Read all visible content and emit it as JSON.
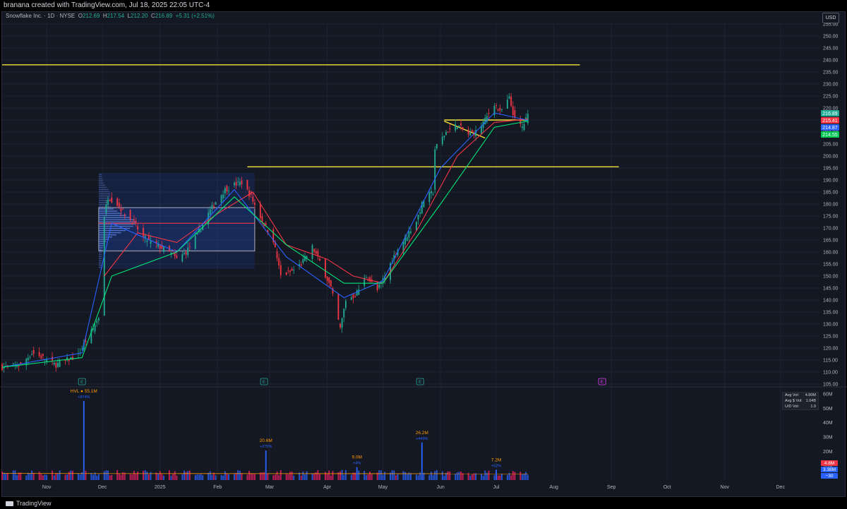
{
  "header": {
    "text": "branana created with TradingView.com, Jul 18, 2025 22:05 UTC-4"
  },
  "legend": {
    "symbol": "Snowflake Inc. · 1D · NYSE",
    "o_label": "O",
    "o": "212.69",
    "h_label": "H",
    "h": "217.54",
    "l_label": "L",
    "l": "212.20",
    "c_label": "C",
    "c": "216.89",
    "change": "+5.31 (+2.51%)"
  },
  "currency": "USD",
  "stats": {
    "avg_vol_label": "Avg Vol:",
    "avg_vol": "4.80M",
    "avg_dollar_vol_label": "Avg $ Vol:",
    "avg_dollar_vol": "1.04B",
    "ud_vol_label": "U/D Vol:",
    "ud_vol": "1.9"
  },
  "footer": {
    "brand": "TradingView"
  },
  "colors": {
    "background": "#141823",
    "up": "#22ab94",
    "down": "#f23645",
    "level_line": "#f5e23c",
    "volume_up": "#2962ff",
    "volume_down": "#e91e63",
    "vol_label": "#ff9800"
  },
  "chart_data": {
    "type": "candlestick",
    "symbol": "SNOW",
    "price_axis": {
      "min": 105,
      "max": 255,
      "ticks": [
        105,
        110,
        115,
        120,
        125,
        130,
        135,
        140,
        145,
        150,
        155,
        160,
        165,
        170,
        175,
        180,
        185,
        190,
        195,
        200,
        205,
        210,
        215,
        220,
        225,
        230,
        235,
        240,
        245,
        250,
        255
      ],
      "tick_labels": [
        "105.00",
        "110.00",
        "115.00",
        "120.00",
        "125.00",
        "130.00",
        "135.00",
        "140.00",
        "145.00",
        "150.00",
        "155.00",
        "160.00",
        "165.00",
        "170.00",
        "175.00",
        "180.00",
        "185.00",
        "190.00",
        "195.00",
        "200.00",
        "205.00",
        "210.00",
        "215.00",
        "220.00",
        "225.00",
        "230.00",
        "235.00",
        "240.00",
        "245.00",
        "250.00",
        "255.00"
      ]
    },
    "time_axis": {
      "start": "2024-10-08",
      "end": "2025-12-22",
      "labels": [
        {
          "date": "2024-11-01",
          "label": "Nov"
        },
        {
          "date": "2024-12-01",
          "label": "Dec"
        },
        {
          "date": "2025-01-01",
          "label": "2025"
        },
        {
          "date": "2025-02-01",
          "label": "Feb"
        },
        {
          "date": "2025-03-01",
          "label": "Mar"
        },
        {
          "date": "2025-04-01",
          "label": "Apr"
        },
        {
          "date": "2025-05-01",
          "label": "May"
        },
        {
          "date": "2025-06-01",
          "label": "Jun"
        },
        {
          "date": "2025-07-01",
          "label": "Jul"
        },
        {
          "date": "2025-08-01",
          "label": "Aug"
        },
        {
          "date": "2025-09-01",
          "label": "Sep"
        },
        {
          "date": "2025-10-01",
          "label": "Oct"
        },
        {
          "date": "2025-11-01",
          "label": "Nov"
        },
        {
          "date": "2025-12-01",
          "label": "Dec"
        }
      ]
    },
    "close_path": [
      [
        "2024-10-08",
        112
      ],
      [
        "2024-10-18",
        113
      ],
      [
        "2024-10-24",
        118
      ],
      [
        "2024-10-30",
        116
      ],
      [
        "2024-11-06",
        113
      ],
      [
        "2024-11-12",
        115
      ],
      [
        "2024-11-18",
        117
      ],
      [
        "2024-11-22",
        123
      ],
      [
        "2024-11-26",
        128
      ],
      [
        "2024-11-29",
        133
      ],
      [
        "2024-12-02",
        175
      ],
      [
        "2024-12-04",
        183
      ],
      [
        "2024-12-09",
        180
      ],
      [
        "2024-12-13",
        176
      ],
      [
        "2024-12-18",
        172
      ],
      [
        "2024-12-23",
        166
      ],
      [
        "2024-12-30",
        163
      ],
      [
        "2025-01-06",
        160
      ],
      [
        "2025-01-10",
        157
      ],
      [
        "2025-01-15",
        160
      ],
      [
        "2025-01-21",
        167
      ],
      [
        "2025-01-27",
        176
      ],
      [
        "2025-01-31",
        181
      ],
      [
        "2025-02-05",
        186
      ],
      [
        "2025-02-10",
        188
      ],
      [
        "2025-02-14",
        189
      ],
      [
        "2025-02-19",
        183
      ],
      [
        "2025-02-25",
        173
      ],
      [
        "2025-03-03",
        165
      ],
      [
        "2025-03-07",
        150
      ],
      [
        "2025-03-13",
        152
      ],
      [
        "2025-03-18",
        155
      ],
      [
        "2025-03-24",
        162
      ],
      [
        "2025-03-28",
        156
      ],
      [
        "2025-04-03",
        145
      ],
      [
        "2025-04-08",
        128
      ],
      [
        "2025-04-11",
        140
      ],
      [
        "2025-04-16",
        142
      ],
      [
        "2025-04-22",
        150
      ],
      [
        "2025-04-28",
        144
      ],
      [
        "2025-05-02",
        150
      ],
      [
        "2025-05-08",
        160
      ],
      [
        "2025-05-14",
        167
      ],
      [
        "2025-05-19",
        173
      ],
      [
        "2025-05-23",
        182
      ],
      [
        "2025-05-28",
        185
      ],
      [
        "2025-05-29",
        203
      ],
      [
        "2025-06-04",
        210
      ],
      [
        "2025-06-10",
        213
      ],
      [
        "2025-06-16",
        209
      ],
      [
        "2025-06-20",
        210
      ],
      [
        "2025-06-25",
        215
      ],
      [
        "2025-06-30",
        222
      ],
      [
        "2025-07-03",
        218
      ],
      [
        "2025-07-08",
        224
      ],
      [
        "2025-07-11",
        215
      ],
      [
        "2025-07-15",
        212
      ],
      [
        "2025-07-18",
        216.89
      ]
    ],
    "moving_averages": [
      {
        "color": "#f23645",
        "values": [
          [
            "2024-12-02",
            150
          ],
          [
            "2024-12-20",
            168
          ],
          [
            "2025-01-10",
            164
          ],
          [
            "2025-02-01",
            176
          ],
          [
            "2025-02-20",
            185
          ],
          [
            "2025-03-10",
            163
          ],
          [
            "2025-04-01",
            157
          ],
          [
            "2025-04-15",
            150
          ],
          [
            "2025-05-01",
            147
          ],
          [
            "2025-05-20",
            170
          ],
          [
            "2025-06-10",
            200
          ],
          [
            "2025-06-30",
            214
          ],
          [
            "2025-07-18",
            215.41
          ]
        ]
      },
      {
        "color": "#2962ff",
        "values": [
          [
            "2024-10-08",
            112
          ],
          [
            "2024-11-20",
            118
          ],
          [
            "2024-12-06",
            172
          ],
          [
            "2025-01-10",
            160
          ],
          [
            "2025-02-10",
            186
          ],
          [
            "2025-03-10",
            158
          ],
          [
            "2025-04-10",
            141
          ],
          [
            "2025-05-01",
            148
          ],
          [
            "2025-06-01",
            195
          ],
          [
            "2025-06-30",
            218
          ],
          [
            "2025-07-18",
            214.87
          ]
        ]
      },
      {
        "color": "#00e676",
        "values": [
          [
            "2024-10-08",
            112
          ],
          [
            "2024-11-20",
            116
          ],
          [
            "2024-12-06",
            150
          ],
          [
            "2025-01-10",
            160
          ],
          [
            "2025-02-10",
            183
          ],
          [
            "2025-03-10",
            163
          ],
          [
            "2025-04-10",
            147
          ],
          [
            "2025-05-01",
            147
          ],
          [
            "2025-06-01",
            180
          ],
          [
            "2025-06-30",
            212
          ],
          [
            "2025-07-18",
            214.55
          ]
        ]
      }
    ],
    "price_labels": [
      {
        "value": "216.89",
        "color": "#22ab94"
      },
      {
        "value": "215.41",
        "color": "#f23645"
      },
      {
        "value": "214.87",
        "color": "#2962ff"
      },
      {
        "value": "214.55",
        "color": "#00c853"
      }
    ],
    "horizontal_levels": [
      {
        "price": 238,
        "from": "2024-10-08",
        "to": "2025-08-15"
      },
      {
        "price": 195.5,
        "from": "2025-02-17",
        "to": "2025-09-05"
      },
      {
        "price": 215,
        "from": "2025-06-03",
        "to": "2025-07-18"
      }
    ],
    "volume_profile": {
      "from": "2024-11-29",
      "to": "2025-02-21",
      "high": 193,
      "low": 153,
      "poc": 172,
      "value_high": 178.5,
      "value_low": 160.5
    },
    "earnings_markers": [
      {
        "date": "2024-11-20",
        "label": "E"
      },
      {
        "date": "2025-02-26",
        "label": "E"
      },
      {
        "date": "2025-05-21",
        "label": "E"
      },
      {
        "date": "2025-08-27",
        "label": "E"
      }
    ],
    "volume": {
      "axis_ticks": [
        {
          "v": 10,
          "label": "10M"
        },
        {
          "v": 20,
          "label": "20M"
        },
        {
          "v": 30,
          "label": "30M"
        },
        {
          "v": 40,
          "label": "40M"
        },
        {
          "v": 50,
          "label": "50M"
        },
        {
          "v": 60,
          "label": "60M"
        }
      ],
      "max": 62,
      "spikes": [
        {
          "date": "2024-11-21",
          "value": 55.1,
          "label": "HVL ● 55.1M",
          "sub": "+874%"
        },
        {
          "date": "2025-02-27",
          "value": 20.6,
          "label": "20.6M",
          "sub": "+270%"
        },
        {
          "date": "2025-04-17",
          "value": 9.0,
          "label": "9.0M",
          "sub": "+4%"
        },
        {
          "date": "2025-05-22",
          "value": 26.2,
          "label": "26.2M",
          "sub": "+449%"
        },
        {
          "date": "2025-07-01",
          "value": 7.2,
          "label": "7.2M",
          "sub": "+52%"
        }
      ],
      "right_labels": [
        {
          "label": "4.8M",
          "color": "#f23645"
        },
        {
          "label": "3.38M",
          "color": "#2962ff"
        },
        {
          "label": "−30",
          "color": "#2962ff"
        }
      ]
    }
  }
}
